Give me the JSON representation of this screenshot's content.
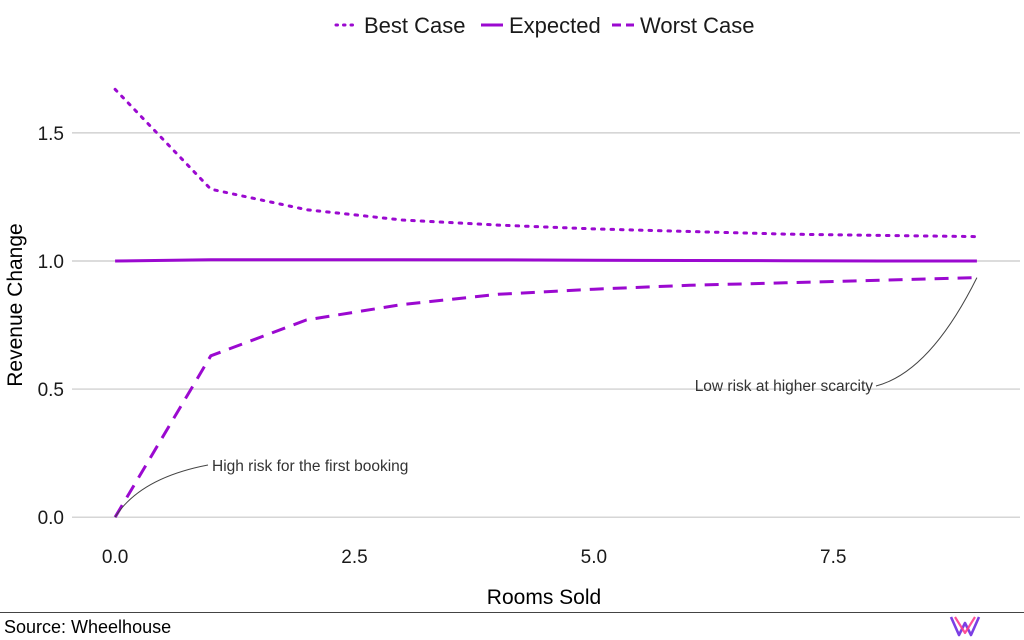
{
  "chart_data": {
    "type": "line",
    "xlabel": "Rooms Sold",
    "ylabel": "Revenue Change",
    "xlim": [
      -0.45,
      9.45
    ],
    "ylim": [
      -0.05,
      1.8
    ],
    "x_ticks": [
      0.0,
      2.5,
      5.0,
      7.5
    ],
    "x_tick_labels": [
      "0.0",
      "2.5",
      "5.0",
      "7.5"
    ],
    "y_ticks": [
      0.0,
      0.5,
      1.0,
      1.5
    ],
    "y_tick_labels": [
      "0.0",
      "0.5",
      "1.0",
      "1.5"
    ],
    "grid": "horizontal",
    "legend_position": "top",
    "x": [
      0,
      1,
      2,
      3,
      4,
      5,
      6,
      7,
      8,
      9
    ],
    "series": [
      {
        "name": "Best Case",
        "style": "dotted",
        "color": "#9b09d0",
        "values": [
          1.67,
          1.28,
          1.2,
          1.16,
          1.14,
          1.125,
          1.115,
          1.105,
          1.1,
          1.095
        ]
      },
      {
        "name": "Expected",
        "style": "solid",
        "color": "#9b09d0",
        "values": [
          1.0,
          1.005,
          1.005,
          1.005,
          1.004,
          1.003,
          1.002,
          1.001,
          1.0,
          1.0
        ]
      },
      {
        "name": "Worst Case",
        "style": "dashed",
        "color": "#9b09d0",
        "values": [
          0.0,
          0.63,
          0.77,
          0.83,
          0.87,
          0.89,
          0.905,
          0.915,
          0.925,
          0.935
        ]
      }
    ],
    "annotations": [
      {
        "text": "High risk for the first booking",
        "point_x": 0,
        "point_y": 0.0
      },
      {
        "text": "Low risk at higher scarcity",
        "point_x": 9,
        "point_y": 0.935
      }
    ]
  },
  "footer": {
    "source": "Source: Wheelhouse",
    "logo_icon": "wheelhouse-logo-icon"
  }
}
